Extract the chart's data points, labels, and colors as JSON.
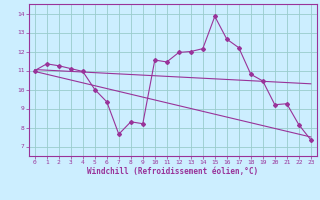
{
  "xlabel": "Windchill (Refroidissement éolien,°C)",
  "background_color": "#cceeff",
  "plot_color": "#993399",
  "grid_color": "#aadddd",
  "x_ticks": [
    0,
    1,
    2,
    3,
    4,
    5,
    6,
    7,
    8,
    9,
    10,
    11,
    12,
    13,
    14,
    15,
    16,
    17,
    18,
    19,
    20,
    21,
    22,
    23
  ],
  "y_ticks": [
    7,
    8,
    9,
    10,
    11,
    12,
    13,
    14
  ],
  "ylim": [
    6.5,
    14.5
  ],
  "xlim": [
    -0.5,
    23.5
  ],
  "line1_x": [
    0,
    1,
    2,
    3,
    4,
    5,
    6,
    7,
    8,
    9,
    10,
    11,
    12,
    13,
    14,
    15,
    16,
    17,
    18,
    19,
    20,
    21,
    22,
    23
  ],
  "line1_y": [
    11.0,
    11.35,
    11.25,
    11.1,
    10.95,
    10.0,
    9.35,
    7.65,
    8.3,
    8.2,
    11.55,
    11.45,
    11.95,
    12.0,
    12.15,
    13.85,
    12.65,
    12.2,
    10.8,
    10.45,
    9.2,
    9.25,
    8.15,
    7.35
  ],
  "line2_x": [
    0,
    23
  ],
  "line2_y": [
    11.05,
    10.3
  ],
  "line3_x": [
    0,
    23
  ],
  "line3_y": [
    10.95,
    7.5
  ]
}
